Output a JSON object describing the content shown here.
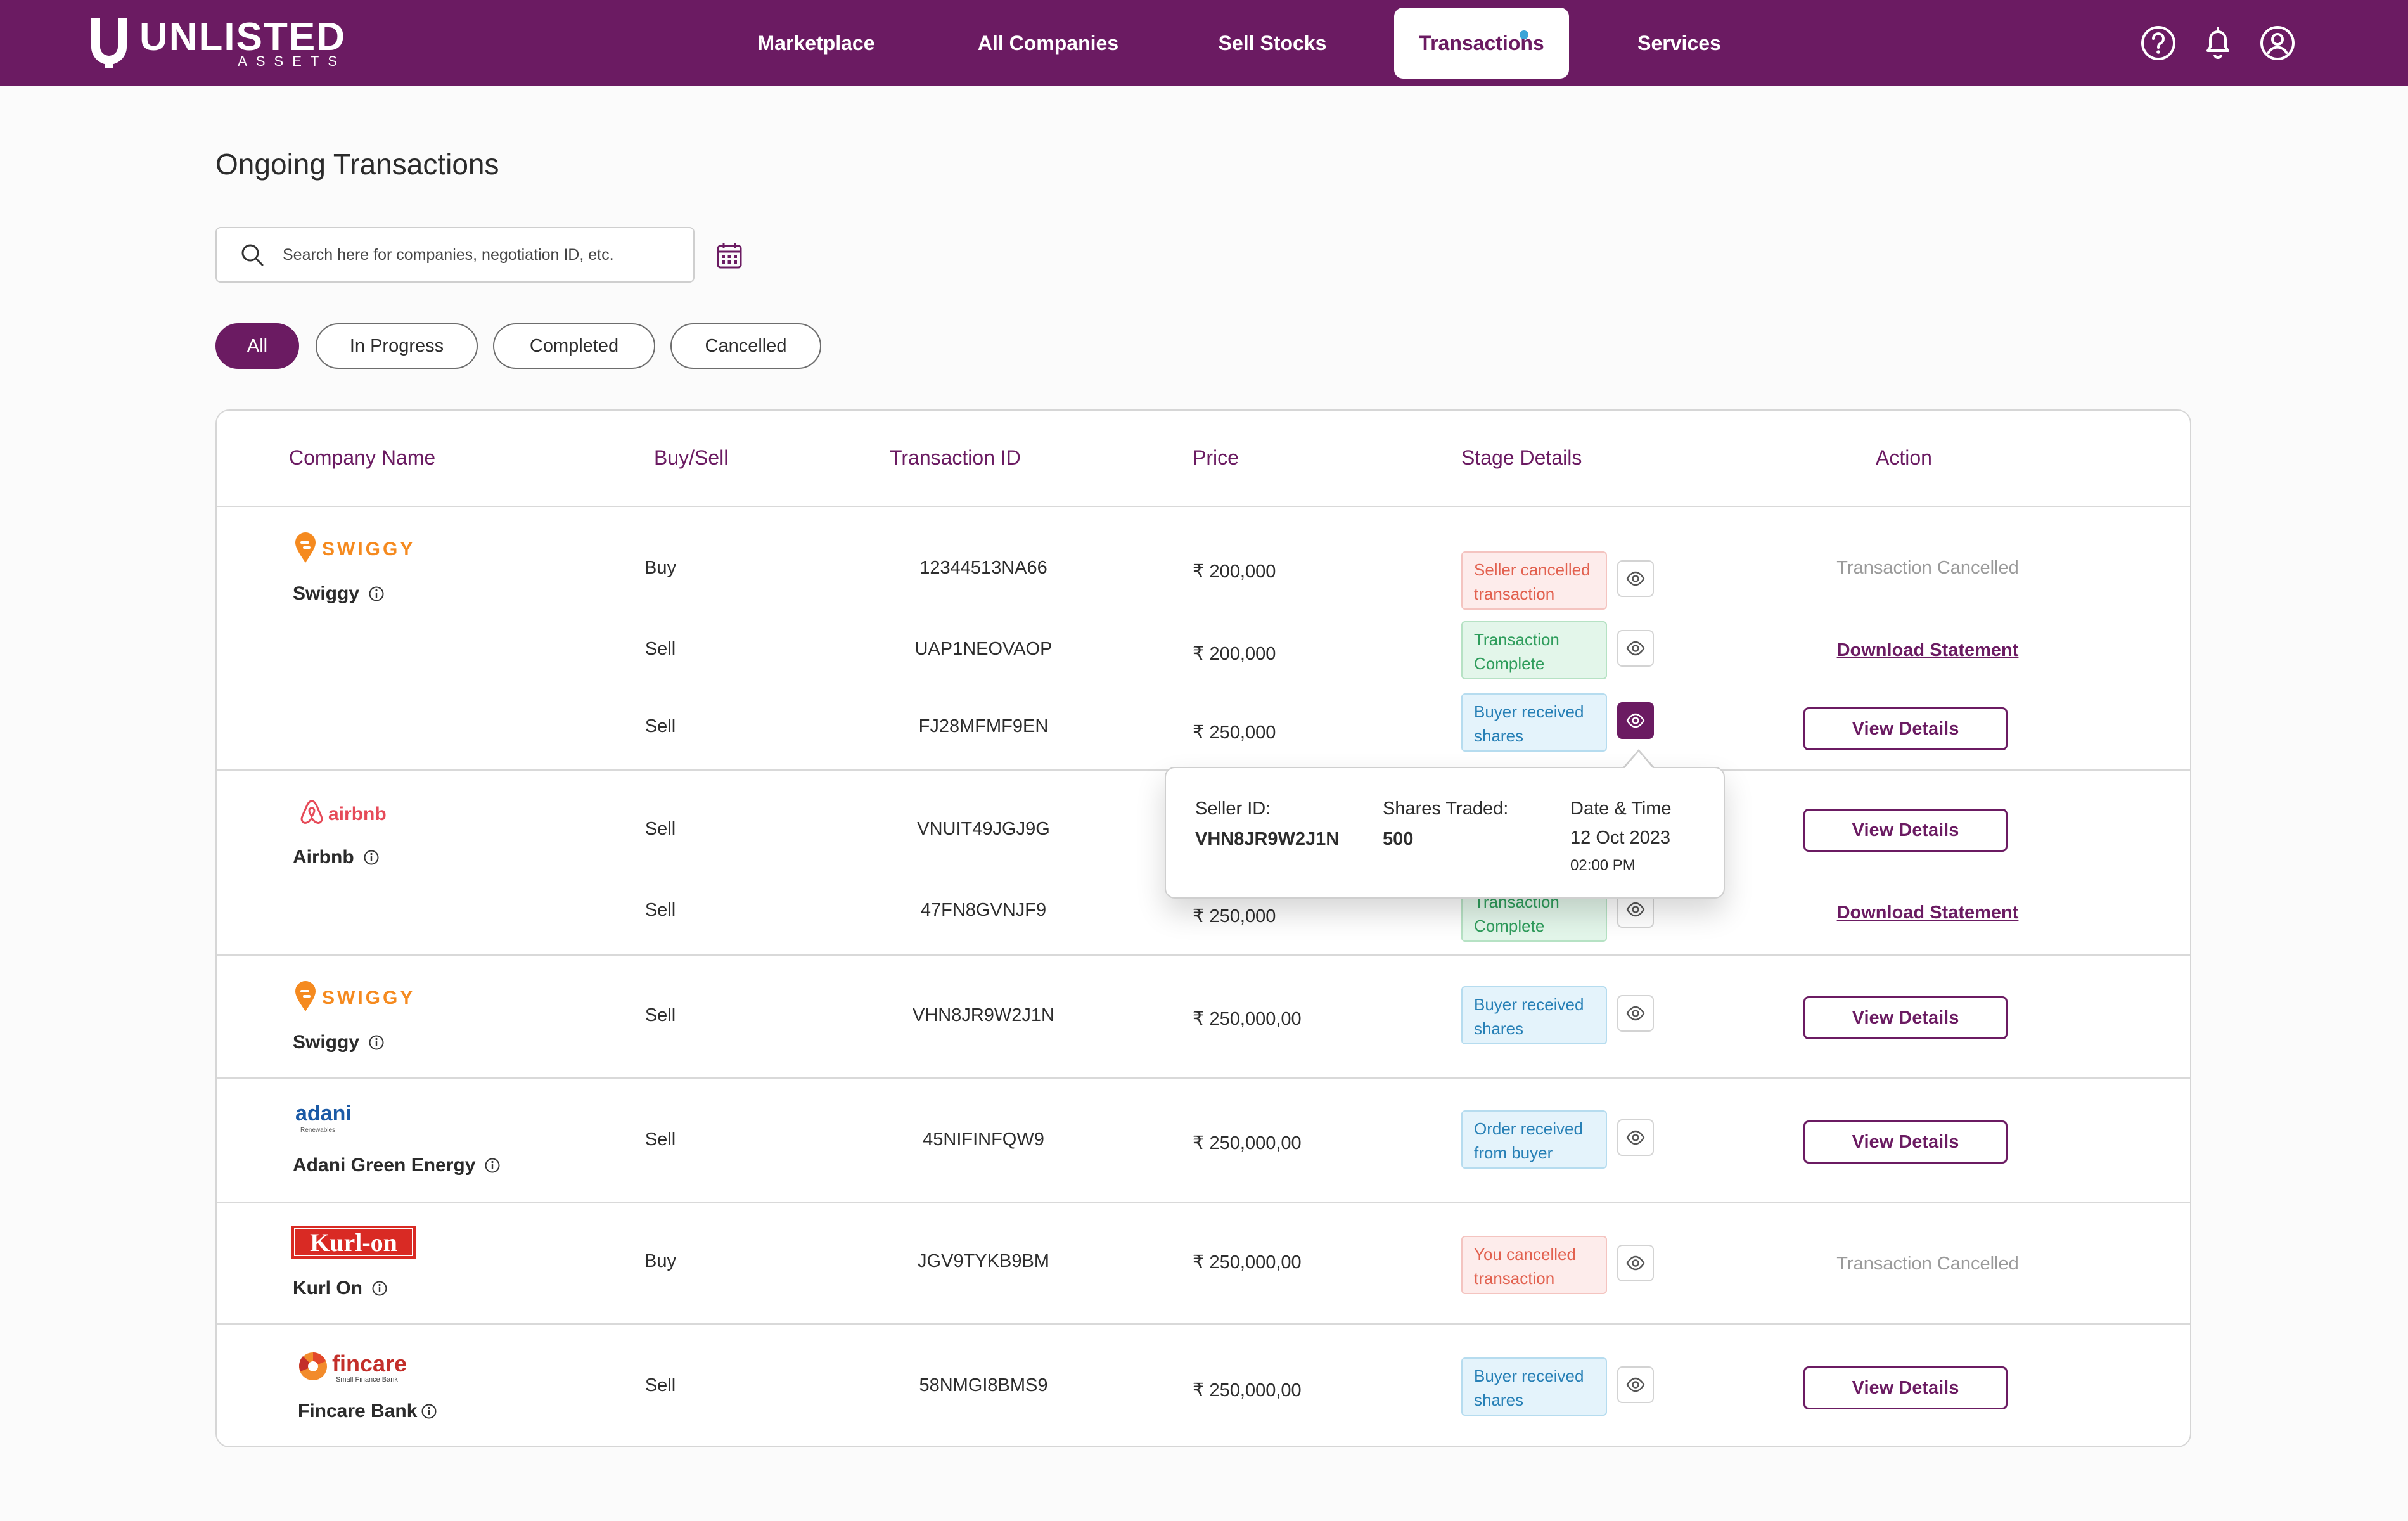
{
  "header": {
    "brand": "UNLISTED",
    "brand_sub": "ASSETS",
    "nav": [
      {
        "label": "Marketplace"
      },
      {
        "label": "All Companies"
      },
      {
        "label": "Sell Stocks"
      },
      {
        "label": "Transactions",
        "active": true
      },
      {
        "label": "Services"
      }
    ],
    "icons": [
      "help-icon",
      "bell-icon",
      "user-icon"
    ]
  },
  "page": {
    "title": "Ongoing Transactions",
    "search_placeholder": "Search here for companies, negotiation ID, etc."
  },
  "filters": [
    {
      "label": "All",
      "active": true
    },
    {
      "label": "In Progress"
    },
    {
      "label": "Completed"
    },
    {
      "label": "Cancelled"
    }
  ],
  "table": {
    "columns": [
      "Company Name",
      "Buy/Sell",
      "Transaction ID",
      "Price",
      "Stage Details",
      "Action"
    ],
    "groups": [
      {
        "company": "Swiggy",
        "logo_text": "SWIGGY",
        "rows": [
          {
            "type": "Buy",
            "id": "12344513NA66",
            "price": "₹ 200,000",
            "stage": [
              "Seller cancelled",
              "transaction"
            ],
            "stage_color": "red",
            "action": "Transaction Cancelled"
          },
          {
            "type": "Sell",
            "id": "UAP1NEOVAOP",
            "price": "₹ 200,000",
            "stage": [
              "Transaction",
              "Complete"
            ],
            "stage_color": "green",
            "action": "Download Statement"
          },
          {
            "type": "Sell",
            "id": "FJ28MFMF9EN",
            "price": "₹ 250,000",
            "stage": [
              "Buyer received",
              "shares"
            ],
            "stage_color": "blue",
            "action": "View Details"
          }
        ]
      },
      {
        "company": "Airbnb",
        "logo_text": "airbnb",
        "rows": [
          {
            "type": "Sell",
            "id": "VNUIT49JGJ9G",
            "price": "",
            "stage": [
              "",
              ""
            ],
            "stage_color": "",
            "action": "View Details"
          },
          {
            "type": "Sell",
            "id": "47FN8GVNJF9",
            "price": "₹ 250,000",
            "stage": [
              "Transaction",
              "Complete"
            ],
            "stage_color": "green",
            "action": "Download Statement"
          }
        ]
      },
      {
        "company": "Swiggy",
        "logo_text": "SWIGGY",
        "rows": [
          {
            "type": "Sell",
            "id": "VHN8JR9W2J1N",
            "price": "₹ 250,000,00",
            "stage": [
              "Buyer received",
              "shares"
            ],
            "stage_color": "blue",
            "action": "View Details"
          }
        ]
      },
      {
        "company": "Adani Green Energy",
        "logo_text": "adani",
        "logo_sub": "Renewables",
        "rows": [
          {
            "type": "Sell",
            "id": "45NIFINFQW9",
            "price": "₹ 250,000,00",
            "stage": [
              "Order received",
              "from buyer"
            ],
            "stage_color": "blue",
            "action": "View Details"
          }
        ]
      },
      {
        "company": "Kurl On",
        "logo_text": "Kurl-on",
        "rows": [
          {
            "type": "Buy",
            "id": "JGV9TYKB9BM",
            "price": "₹ 250,000,00",
            "stage": [
              "You cancelled",
              "transaction"
            ],
            "stage_color": "red",
            "action": "Transaction Cancelled"
          }
        ]
      },
      {
        "company": "Fincare Bank",
        "logo_text": "fincare",
        "logo_sub": "Small Finance Bank",
        "rows": [
          {
            "type": "Sell",
            "id": "58NMGI8BMS9",
            "price": "₹ 250,000,00",
            "stage": [
              "Buyer received",
              "shares"
            ],
            "stage_color": "blue",
            "action": "View Details"
          }
        ]
      }
    ]
  },
  "popover": {
    "seller_label": "Seller ID:",
    "seller_value": "VHN8JR9W2J1N",
    "shares_label": "Shares Traded:",
    "shares_value": "500",
    "date_label": "Date & Time",
    "date_value": "12 Oct 2023",
    "time_value": "02:00 PM"
  },
  "colors": {
    "brand": "#6b1b62",
    "cancel_red": "#e2614f",
    "complete_green": "#2f9d5c",
    "info_blue": "#2780b6"
  }
}
